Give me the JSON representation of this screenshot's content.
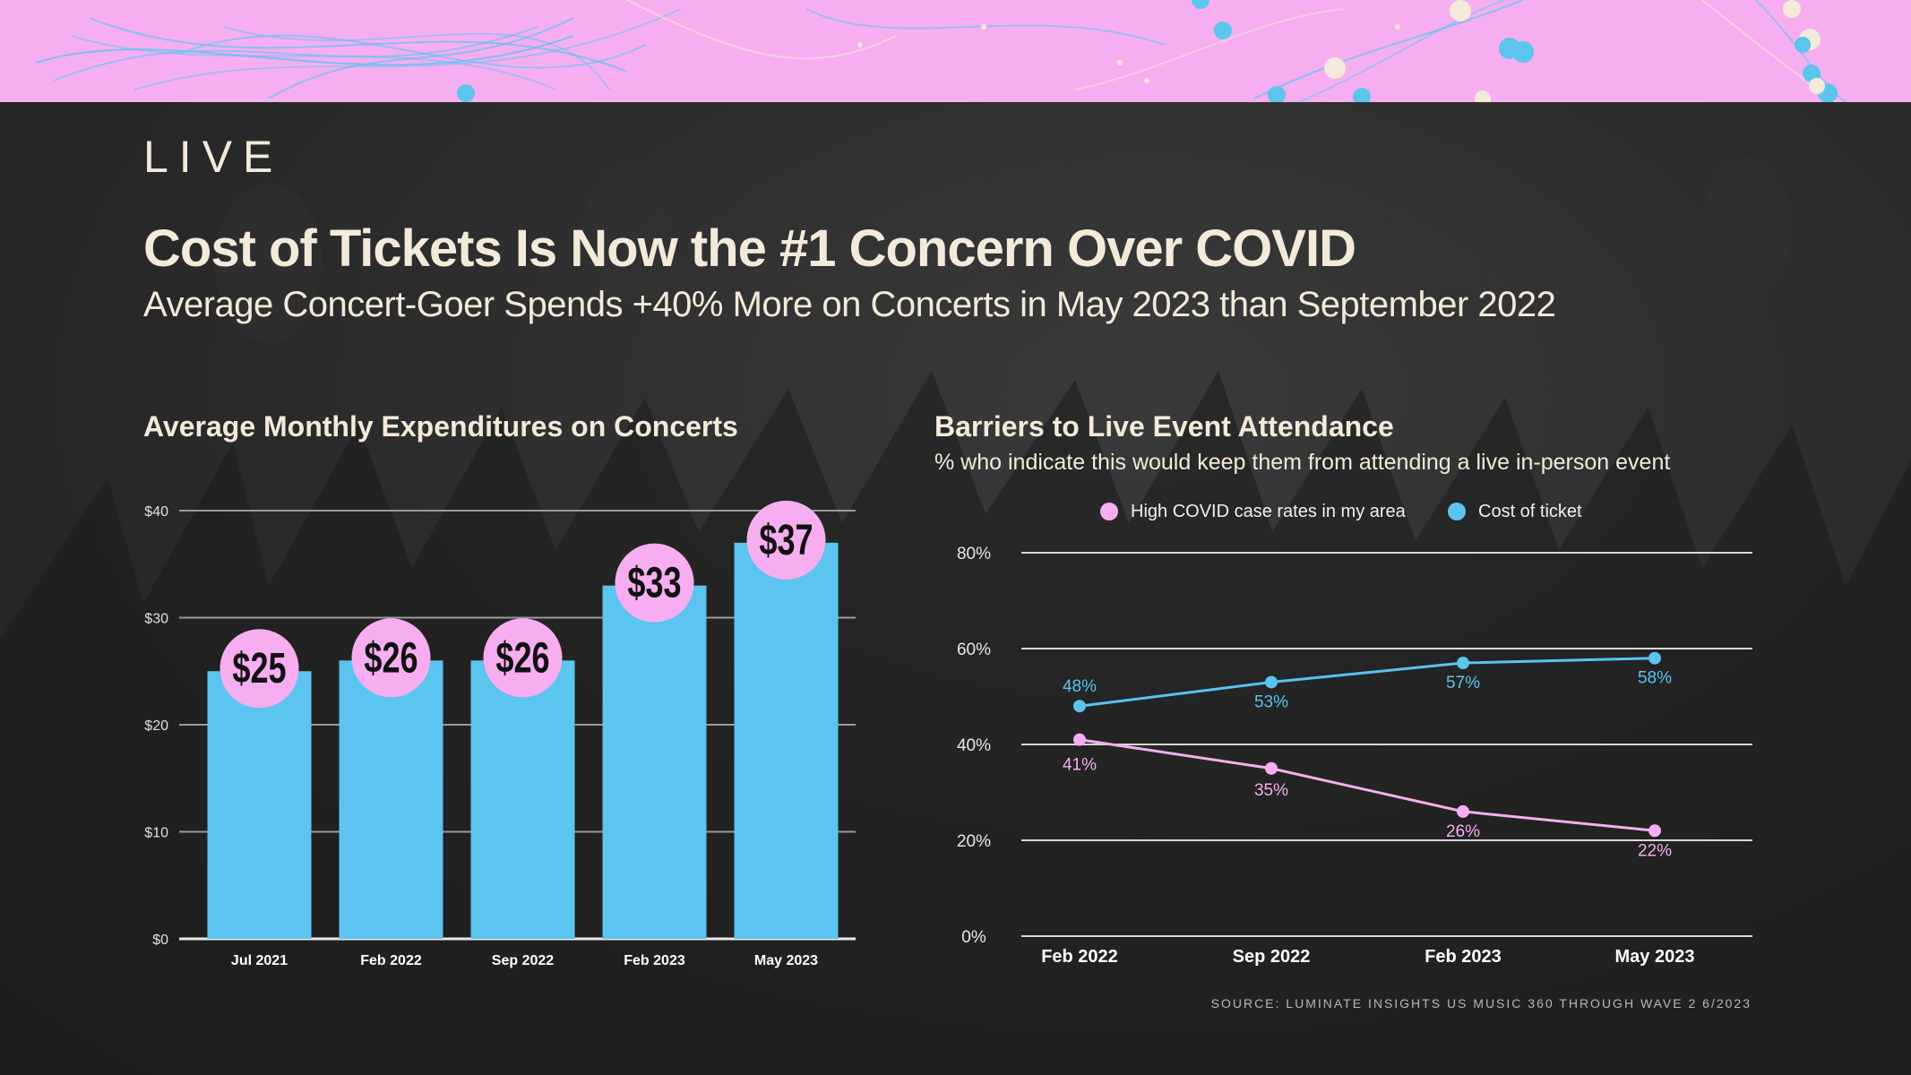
{
  "header": {
    "section": "LIVE",
    "title": "Cost of Tickets Is Now the #1 Concern Over COVID",
    "subtitle": "Average Concert-Goer Spends +40% More on Concerts in May 2023 than September 2022"
  },
  "colors": {
    "pink": "#f7aef0",
    "blue": "#5bc4ef",
    "cream": "#f3ead9",
    "background": "#262626"
  },
  "chart_data": [
    {
      "type": "bar",
      "title": "Average Monthly Expenditures on Concerts",
      "categories": [
        "Jul 2021",
        "Feb 2022",
        "Sep 2022",
        "Feb 2023",
        "May 2023"
      ],
      "values": [
        25,
        26,
        26,
        33,
        37
      ],
      "value_labels": [
        "$25",
        "$26",
        "$26",
        "$33",
        "$37"
      ],
      "ylim": [
        0,
        40
      ],
      "yticks": [
        0,
        10,
        20,
        30,
        40
      ],
      "ytick_labels": [
        "$0",
        "$10",
        "$20",
        "$30",
        "$40"
      ],
      "grid": true,
      "bar_color": "#5bc4ef",
      "label_bubble_color": "#f7aef0"
    },
    {
      "type": "line",
      "title": "Barriers to Live Event Attendance",
      "subtitle": "% who indicate this would keep them from attending a live in-person event",
      "categories": [
        "Feb 2022",
        "Sep 2022",
        "Feb 2023",
        "May 2023"
      ],
      "series": [
        {
          "name": "High COVID case rates in my area",
          "values": [
            41,
            35,
            26,
            22
          ],
          "labels": [
            "41%",
            "35%",
            "26%",
            "22%"
          ],
          "color": "#f7aef0"
        },
        {
          "name": "Cost of ticket",
          "values": [
            48,
            53,
            57,
            58
          ],
          "labels": [
            "48%",
            "53%",
            "57%",
            "58%"
          ],
          "color": "#5bc4ef"
        }
      ],
      "ylim": [
        0,
        80
      ],
      "yticks": [
        0,
        20,
        40,
        60,
        80
      ],
      "ytick_labels": [
        "0%",
        "20%",
        "40%",
        "60%",
        "80%"
      ],
      "grid": true,
      "legend": "top"
    }
  ],
  "footer": {
    "source": "SOURCE: LUMINATE INSIGHTS US MUSIC 360 THROUGH WAVE 2 6/2023"
  }
}
